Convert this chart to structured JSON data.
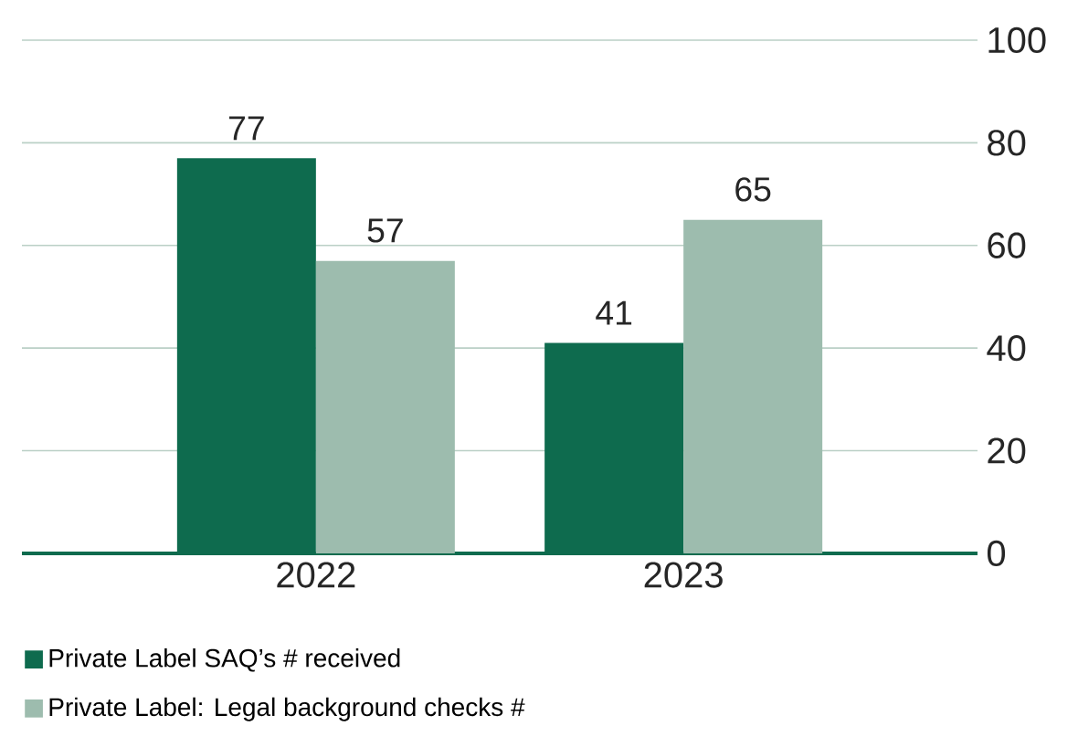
{
  "chart_data": {
    "type": "bar",
    "categories": [
      "2022",
      "2023"
    ],
    "series": [
      {
        "name": "Private Label SAQ’s # received",
        "color": "#0e6b4e",
        "values": [
          77,
          41
        ]
      },
      {
        "name": "Private Label: Legal background checks #",
        "color": "#9dbcae",
        "values": [
          57,
          65
        ]
      }
    ],
    "ylim": [
      0,
      100
    ],
    "yticks": [
      0,
      20,
      40,
      60,
      80,
      100
    ],
    "grid": "y",
    "legend": "bottom",
    "data_labels": true
  }
}
